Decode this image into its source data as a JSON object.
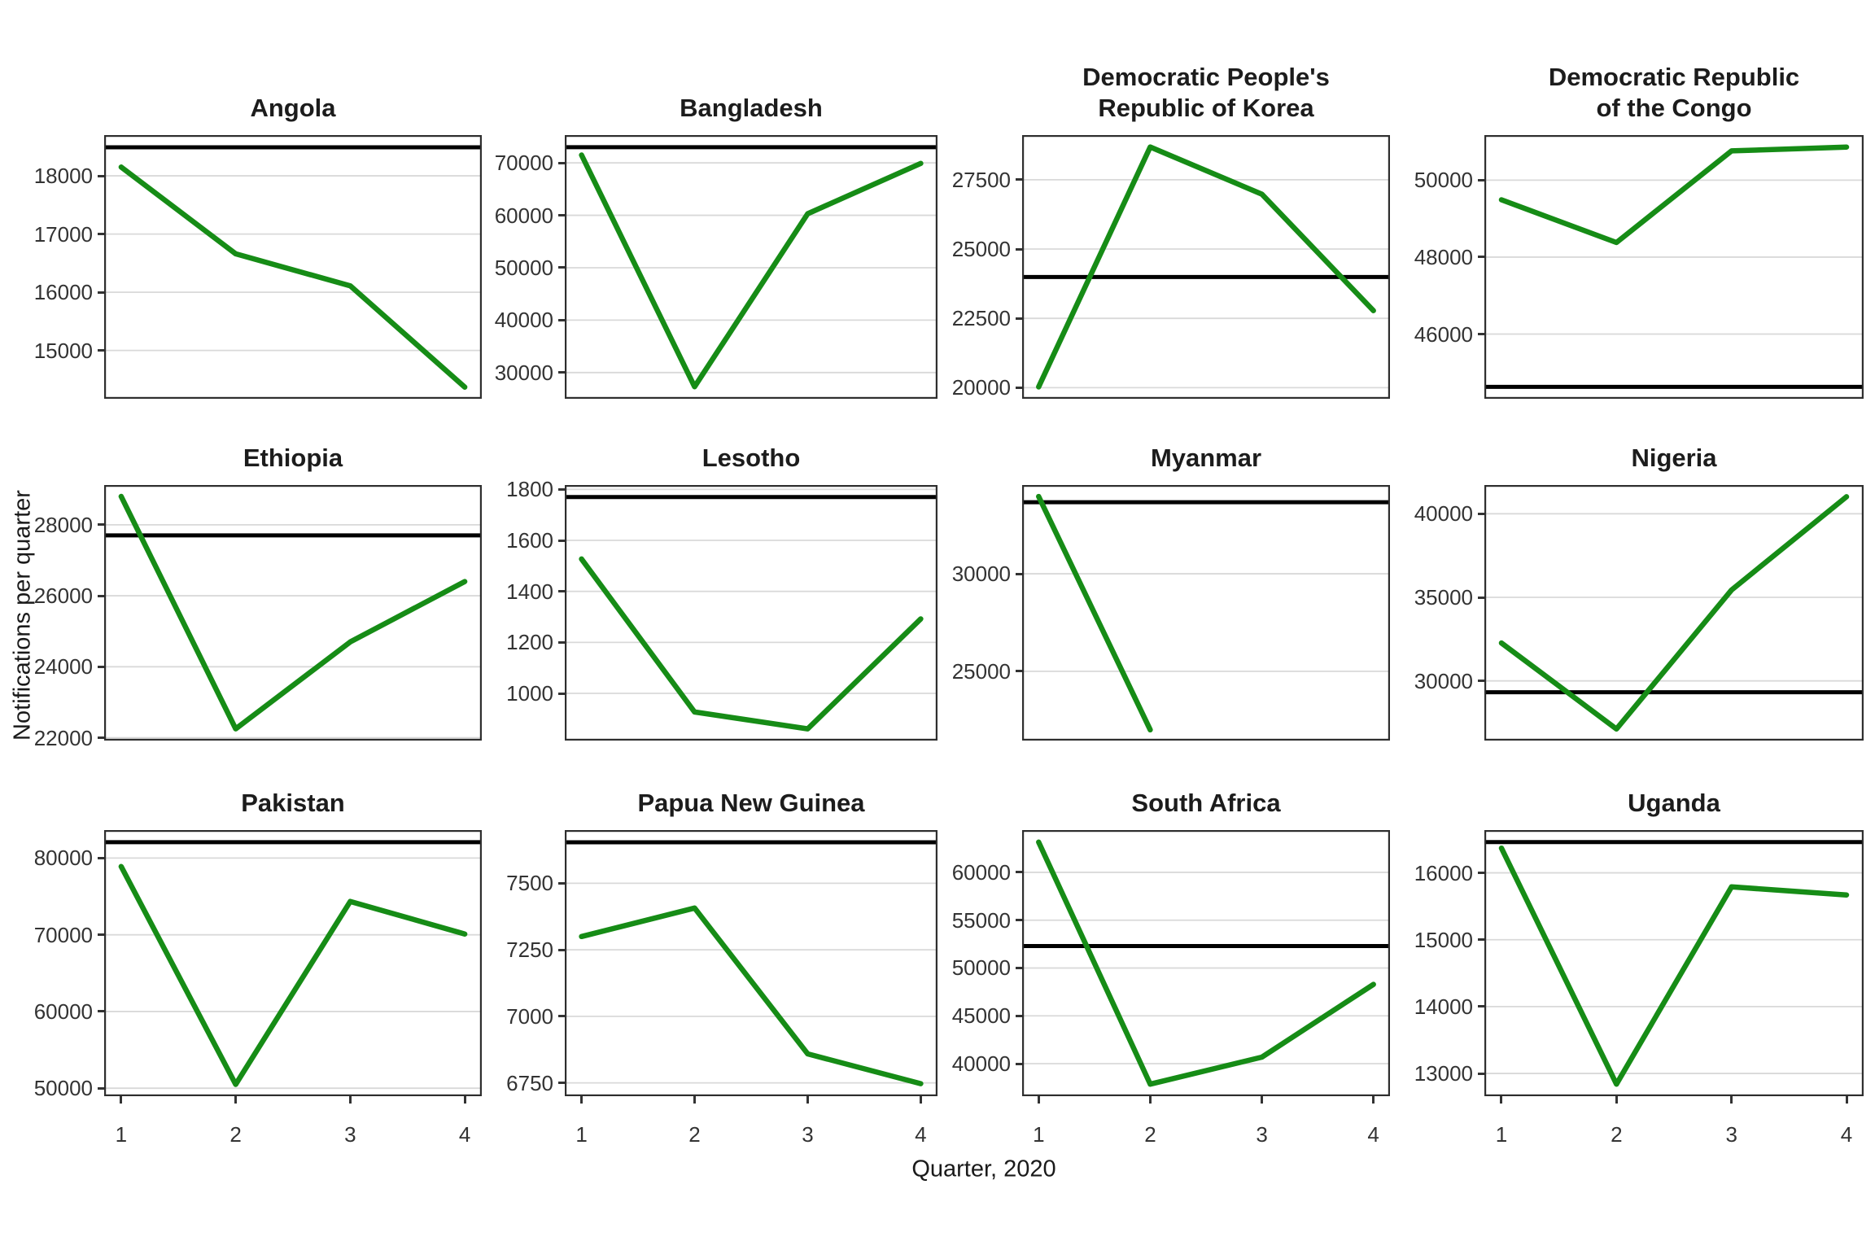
{
  "chart_data": {
    "type": "line",
    "x": [
      1,
      2,
      3,
      4
    ],
    "x_tick_labels": [
      "1",
      "2",
      "3",
      "4"
    ],
    "xlabel": "Quarter, 2020",
    "ylabel": "Notifications per quarter",
    "grid": true,
    "legend_position": "none",
    "line_color": "#168c16",
    "baseline_color": "#000000",
    "gridline_color": "#d9d9d9",
    "panel_border_color": "#2e2e2e",
    "facets": [
      {
        "title": "Angola",
        "title_lines": [
          "Angola"
        ],
        "yticks": [
          15000,
          16000,
          17000,
          18000
        ],
        "ylim": [
          14170,
          18700
        ],
        "baseline": 18490,
        "values": [
          18150,
          16660,
          16110,
          14370
        ]
      },
      {
        "title": "Bangladesh",
        "title_lines": [
          "Bangladesh"
        ],
        "yticks": [
          30000,
          40000,
          50000,
          60000,
          70000
        ],
        "ylim": [
          25000,
          75300
        ],
        "baseline": 73000,
        "values": [
          71500,
          27300,
          60300,
          69900
        ]
      },
      {
        "title": "Democratic People's Republic of Korea",
        "title_lines": [
          "Democratic People's",
          "Republic of Korea"
        ],
        "yticks": [
          20000,
          22500,
          25000,
          27500
        ],
        "ylim": [
          19600,
          29110
        ],
        "baseline": 23990,
        "values": [
          20030,
          28680,
          26980,
          22780
        ]
      },
      {
        "title": "Democratic Republic of the Congo",
        "title_lines": [
          "Democratic Republic",
          "of the Congo"
        ],
        "yticks": [
          46000,
          48000,
          50000
        ],
        "ylim": [
          44320,
          51170
        ],
        "baseline": 44630,
        "values": [
          49490,
          48380,
          50760,
          50860
        ]
      },
      {
        "title": "Ethiopia",
        "title_lines": [
          "Ethiopia"
        ],
        "yticks": [
          22000,
          24000,
          26000,
          28000
        ],
        "ylim": [
          21920,
          29120
        ],
        "baseline": 27700,
        "values": [
          28800,
          22250,
          24700,
          26400
        ]
      },
      {
        "title": "Lesotho",
        "title_lines": [
          "Lesotho"
        ],
        "yticks": [
          1000,
          1200,
          1400,
          1600,
          1800
        ],
        "ylim": [
          815,
          1817
        ],
        "baseline": 1770,
        "values": [
          1527,
          927,
          861,
          1292
        ]
      },
      {
        "title": "Myanmar",
        "title_lines": [
          "Myanmar"
        ],
        "yticks": [
          25000,
          30000
        ],
        "ylim": [
          21450,
          34550
        ],
        "baseline": 33670,
        "values": [
          33960,
          22000,
          null,
          null
        ]
      },
      {
        "title": "Nigeria",
        "title_lines": [
          "Nigeria"
        ],
        "yticks": [
          30000,
          35000,
          40000
        ],
        "ylim": [
          26430,
          41720
        ],
        "baseline": 29320,
        "values": [
          32270,
          27120,
          35440,
          41020
        ]
      },
      {
        "title": "Pakistan",
        "title_lines": [
          "Pakistan"
        ],
        "yticks": [
          50000,
          60000,
          70000,
          80000
        ],
        "ylim": [
          48960,
          83650
        ],
        "baseline": 82070,
        "values": [
          78900,
          50500,
          74350,
          70100
        ]
      },
      {
        "title": "Papua New Guinea",
        "title_lines": [
          "Papua New Guinea"
        ],
        "yticks": [
          6750,
          7000,
          7250,
          7500
        ],
        "ylim": [
          6700,
          7700
        ],
        "baseline": 7654,
        "values": [
          7300,
          7407,
          6859,
          6747
        ]
      },
      {
        "title": "South Africa",
        "title_lines": [
          "South Africa"
        ],
        "yticks": [
          40000,
          45000,
          50000,
          55000,
          60000
        ],
        "ylim": [
          36600,
          64420
        ],
        "baseline": 52300,
        "values": [
          63160,
          37860,
          40680,
          48290
        ]
      },
      {
        "title": "Uganda",
        "title_lines": [
          "Uganda"
        ],
        "yticks": [
          13000,
          14000,
          15000,
          16000
        ],
        "ylim": [
          12660,
          16640
        ],
        "baseline": 16460,
        "values": [
          16370,
          12840,
          15790,
          15670
        ]
      }
    ]
  }
}
